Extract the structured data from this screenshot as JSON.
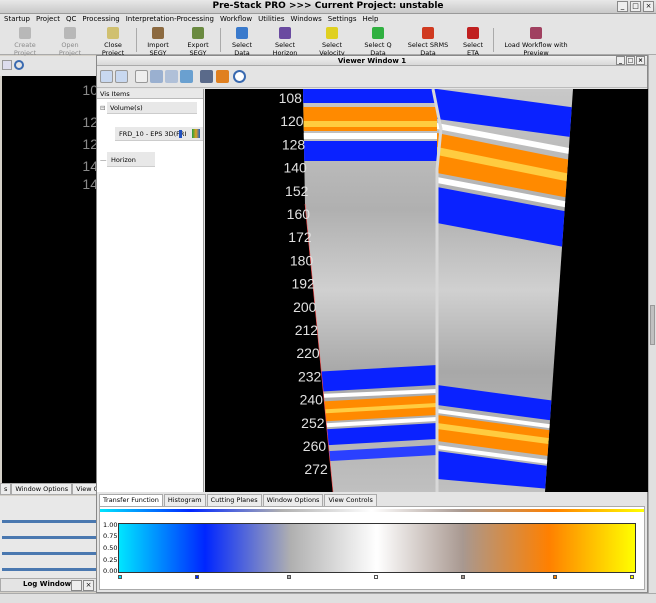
{
  "app": {
    "title": "Pre-Stack PRO   >>>   Current Project: unstable"
  },
  "window_controls": [
    "_",
    "□",
    "×"
  ],
  "menu": [
    "Startup",
    "Project",
    "QC",
    "Processing",
    "Interpretation-Processing",
    "Workflow",
    "Utilities",
    "Windows",
    "Settings",
    "Help"
  ],
  "toolbar": [
    {
      "label": "Create Project",
      "icon": "create-project-icon",
      "enabled": false
    },
    {
      "label": "Open Project",
      "icon": "open-project-icon",
      "enabled": false
    },
    {
      "label": "Close Project",
      "icon": "close-project-icon",
      "enabled": true
    },
    {
      "label": "Import SEGY",
      "icon": "import-segy-icon",
      "enabled": true
    },
    {
      "label": "Export SEGY",
      "icon": "export-segy-icon",
      "enabled": true
    },
    {
      "label": "Select Data",
      "icon": "select-data-icon",
      "enabled": true
    },
    {
      "label": "Select Horizon",
      "icon": "select-horizon-icon",
      "enabled": true
    },
    {
      "label": "Select Velocity",
      "icon": "select-velocity-icon",
      "enabled": true
    },
    {
      "label": "Select Q Data",
      "icon": "select-q-data-icon",
      "enabled": true
    },
    {
      "label": "Select SRMS Data",
      "icon": "select-srms-data-icon",
      "enabled": true
    },
    {
      "label": "Select ETA",
      "icon": "select-eta-icon",
      "enabled": true
    },
    {
      "label": "Load Workflow with Preview",
      "icon": "load-workflow-icon",
      "enabled": true
    }
  ],
  "left_panel": {
    "labels": [
      "10",
      "12",
      "12",
      "14",
      "14"
    ],
    "tabs": [
      "s",
      "Window Options",
      "View Contro"
    ],
    "log_window": {
      "title": "Log Window"
    }
  },
  "viewer": {
    "title": "Viewer Window 1",
    "vis_items_header": "Vis Items",
    "tree": {
      "volume_group": "Volume(s)",
      "volume_item": "FRD_10 - EPS 3D(FRI",
      "horizon_group": "Horizon"
    },
    "depth_labels": [
      "108",
      "120",
      "128",
      "140",
      "152",
      "160",
      "172",
      "180",
      "192",
      "200",
      "212",
      "220",
      "232",
      "240",
      "252",
      "260",
      "272"
    ],
    "bottom_tabs": [
      "Transfer Function",
      "Histogram",
      "Cutting Planes",
      "Window Options",
      "View Controls"
    ],
    "active_tab": "Transfer Function",
    "transfer_function": {
      "y_ticks": [
        "1.00",
        "0.75",
        "0.50",
        "0.25",
        "0.00"
      ],
      "colormap": [
        "#00e5ff",
        "#0026ff",
        "#b0b0b0",
        "#ffffff",
        "#a89890",
        "#ff8000",
        "#ffff00"
      ],
      "markers": [
        0.0,
        0.15,
        0.33,
        0.5,
        0.67,
        0.85,
        1.0
      ]
    }
  },
  "colors": {
    "seismic_orange": "#ff8a00",
    "seismic_blue": "#0a22ff",
    "seismic_gray": "#b8b8b8"
  }
}
